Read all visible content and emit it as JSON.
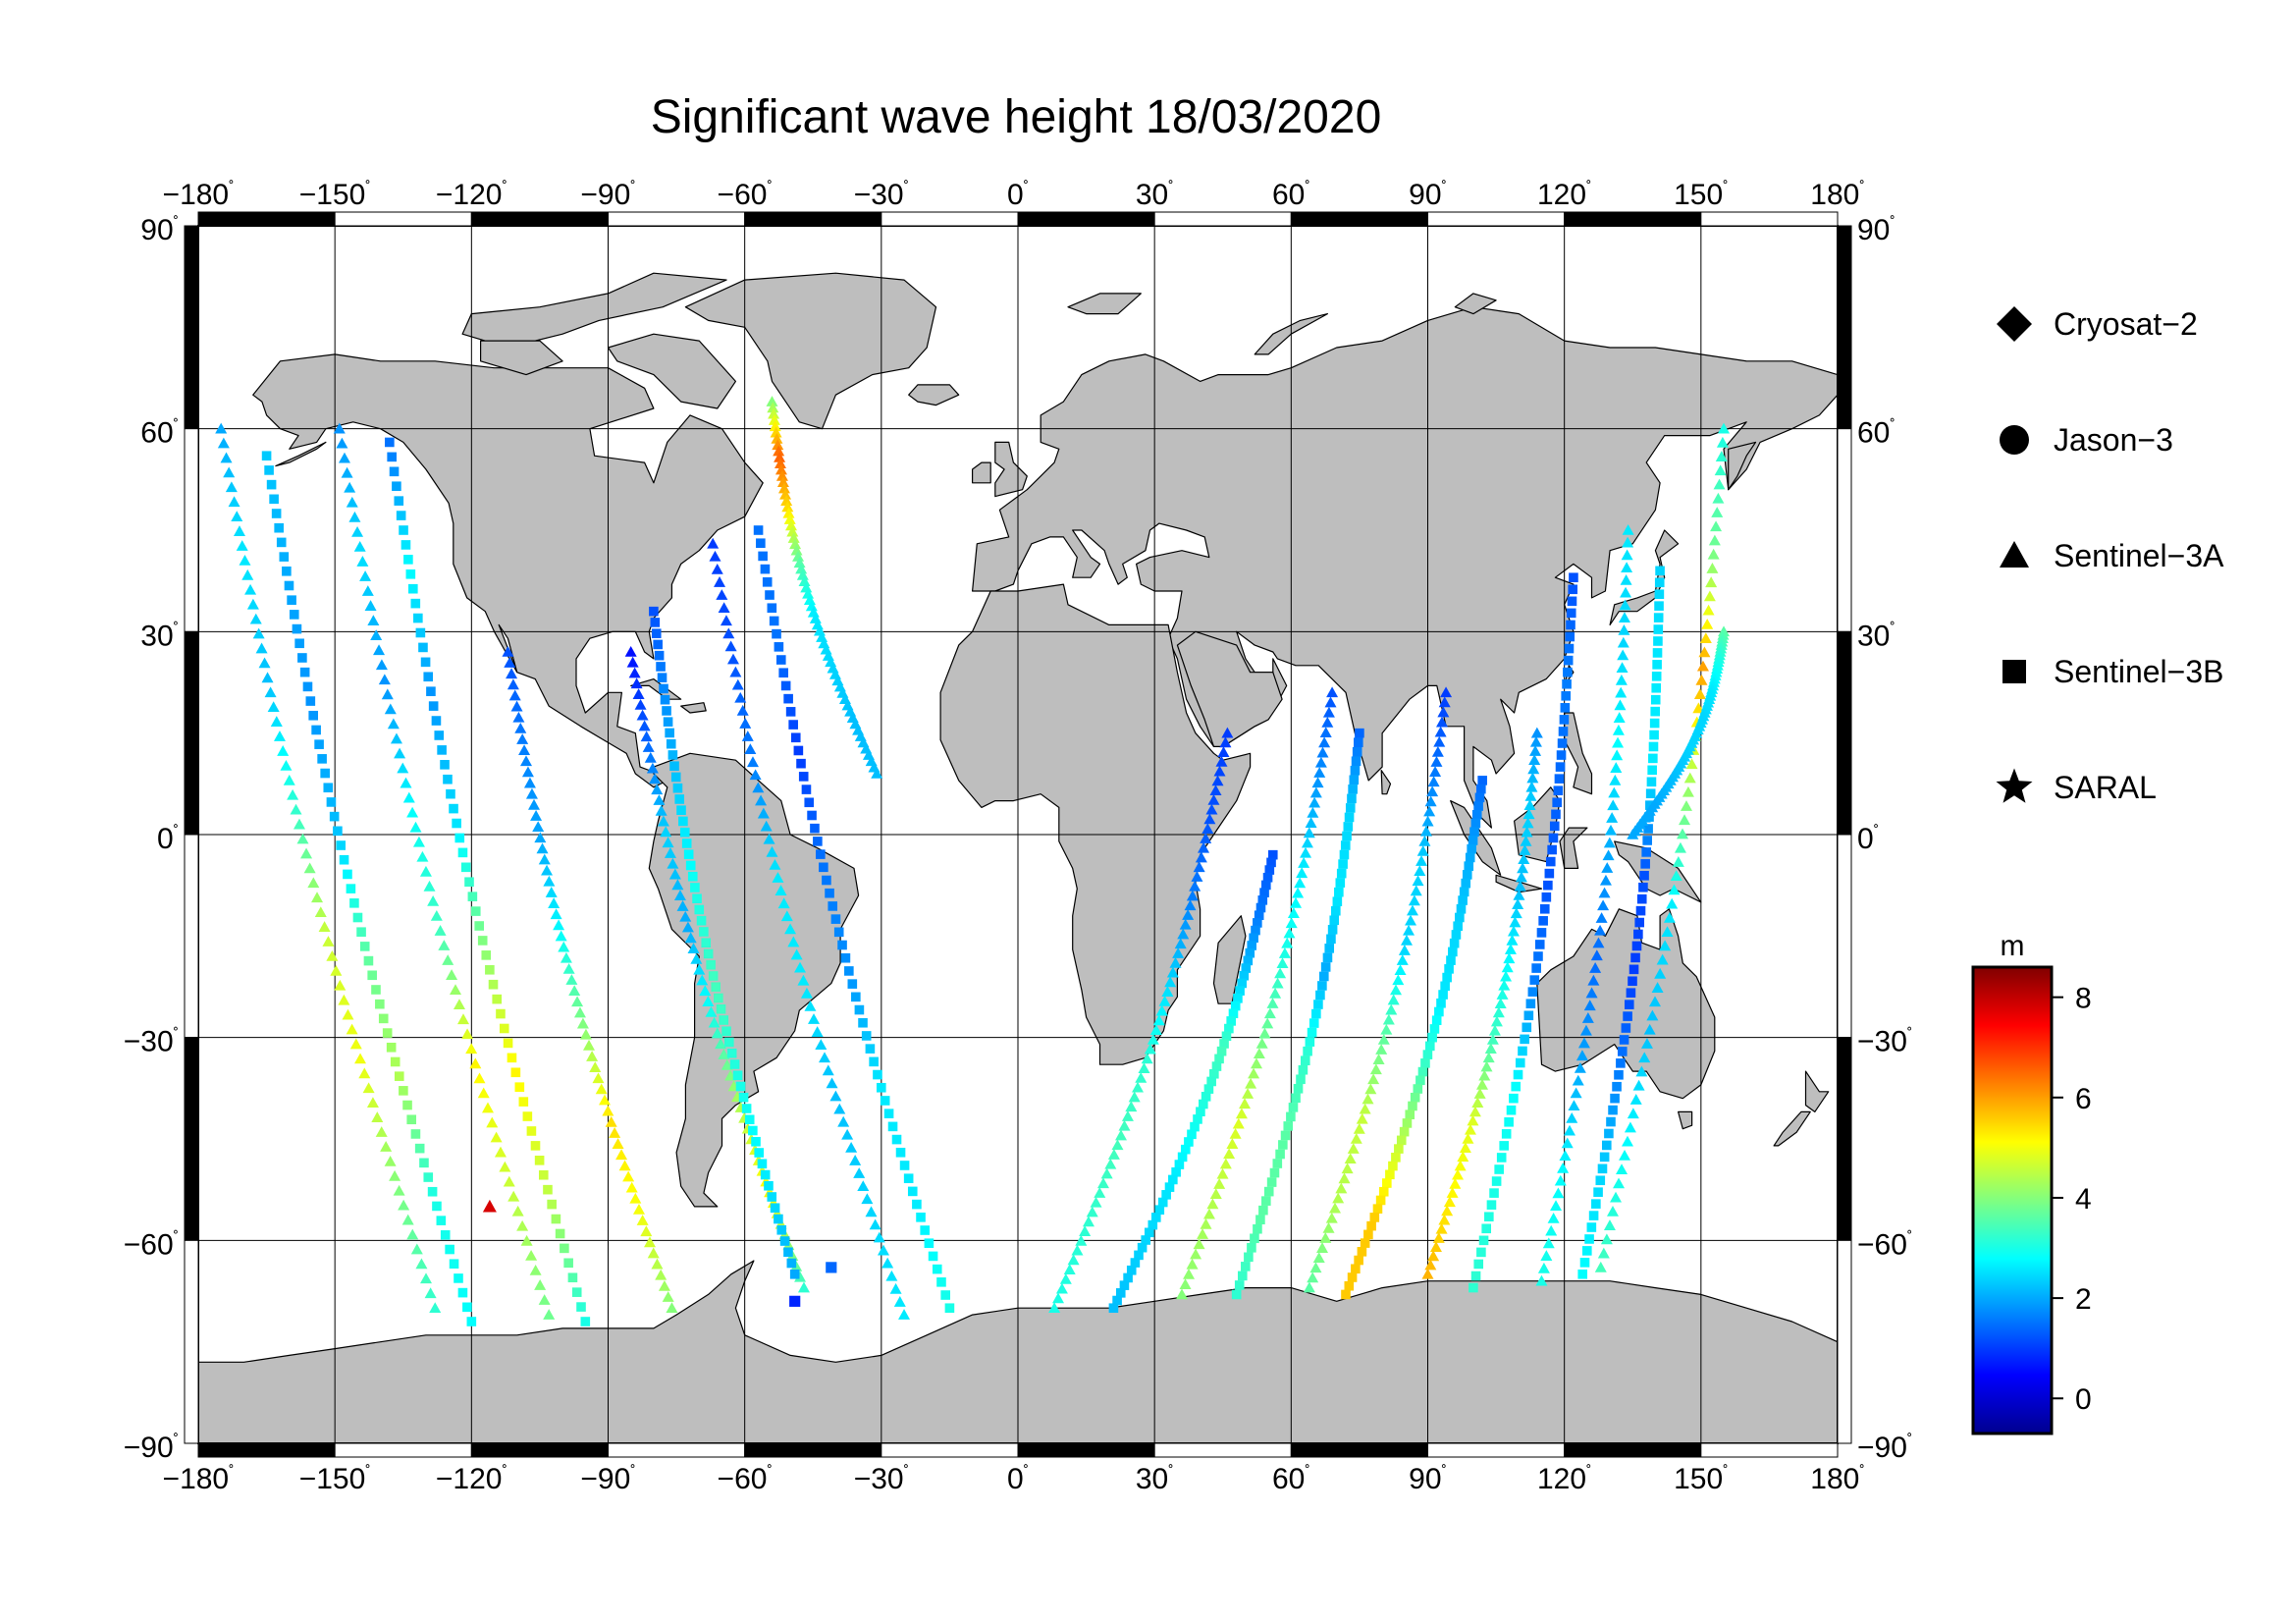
{
  "title": "Significant wave height 18/03/2020",
  "map": {
    "projection": "equirectangular",
    "lon_range": [
      -180,
      180
    ],
    "lat_range": [
      -90,
      90
    ],
    "lon_ticks": [
      -180,
      -150,
      -120,
      -90,
      -60,
      -30,
      0,
      30,
      60,
      90,
      120,
      150,
      180
    ],
    "lat_ticks": [
      90,
      60,
      30,
      0,
      -30,
      -60,
      -90
    ],
    "lon_tick_labels": [
      "−180",
      "−150",
      "−120",
      "−90",
      "−60",
      "−30",
      "0",
      "30",
      "60",
      "90",
      "120",
      "150",
      "180"
    ],
    "lat_tick_labels": [
      "90",
      "60",
      "30",
      "0",
      "−30",
      "−60",
      "−90"
    ],
    "degree_symbol": "˚",
    "land_color": "#bebebe",
    "ocean_color": "#ffffff",
    "grid": true
  },
  "legend": {
    "items": [
      {
        "label": "Cryosat−2",
        "marker": "diamond"
      },
      {
        "label": "Jason−3",
        "marker": "circle"
      },
      {
        "label": "Sentinel−3A",
        "marker": "triangle"
      },
      {
        "label": "Sentinel−3B",
        "marker": "square"
      },
      {
        "label": "SARAL",
        "marker": "star"
      }
    ]
  },
  "colorbar": {
    "unit": "m",
    "range": [
      -0.7,
      8.6
    ],
    "ticks": [
      0,
      2,
      4,
      6,
      8
    ],
    "tick_labels": [
      "0",
      "2",
      "4",
      "6",
      "8"
    ],
    "colormap": [
      "#00008f",
      "#0000ff",
      "#0080ff",
      "#00ffff",
      "#80ff80",
      "#ffff00",
      "#ff8000",
      "#ff0000",
      "#800000"
    ]
  },
  "chart_data": {
    "type": "scatter",
    "title": "Significant wave height 18/03/2020",
    "color_variable": "Significant wave height",
    "color_unit": "m",
    "tracks": [
      {
        "satellite": "Sentinel−3A",
        "start": [
          -175,
          60
        ],
        "end": [
          -128,
          -70
        ],
        "swh": [
          2.0,
          2.6,
          2.2,
          3.2,
          4.6,
          5.0,
          4.0,
          3.2
        ]
      },
      {
        "satellite": "Sentinel−3B",
        "start": [
          -165,
          56
        ],
        "end": [
          -120,
          -72
        ],
        "swh": [
          2.3,
          2.0,
          1.8,
          2.2,
          3.6,
          4.4,
          3.0,
          2.8
        ]
      },
      {
        "satellite": "Sentinel−3A",
        "start": [
          -149,
          60
        ],
        "end": [
          -103,
          -71
        ],
        "swh": [
          1.8,
          2.5,
          1.8,
          2.8,
          3.4,
          5.2,
          4.6,
          3.8
        ]
      },
      {
        "satellite": "Sentinel−3B",
        "start": [
          -138,
          58
        ],
        "end": [
          -95,
          -72
        ],
        "swh": [
          1.5,
          2.8,
          1.8,
          2.5,
          4.0,
          5.2,
          4.5,
          3.0
        ]
      },
      {
        "satellite": "Sentinel−3A",
        "start": [
          -112,
          27
        ],
        "end": [
          -76,
          -70
        ],
        "swh": [
          1.2,
          1.6,
          2.0,
          2.8,
          4.0,
          5.4,
          5.0,
          4.0
        ]
      },
      {
        "satellite": "Sentinel−3A",
        "start": [
          -85,
          27
        ],
        "end": [
          -47,
          -67
        ],
        "swh": [
          0.6,
          1.4,
          2.4,
          2.0,
          3.0,
          4.4,
          5.2,
          3.2
        ]
      },
      {
        "satellite": "Sentinel−3B",
        "start": [
          -80,
          33
        ],
        "end": [
          -49,
          -65
        ],
        "swh": [
          1.2,
          1.8,
          2.4,
          3.0,
          3.4,
          3.0,
          2.6,
          2.0
        ]
      },
      {
        "satellite": "Sentinel−3A",
        "start": [
          -67,
          43
        ],
        "end": [
          -25,
          -71
        ],
        "swh": [
          1.0,
          1.2,
          1.6,
          2.6,
          2.6,
          2.2,
          2.4,
          2.6
        ]
      },
      {
        "satellite": "Sentinel−3B",
        "start": [
          -57,
          45
        ],
        "end": [
          -15,
          -70
        ],
        "swh": [
          1.5,
          1.5,
          1.0,
          1.5,
          1.8,
          2.6,
          2.6,
          3.0
        ]
      },
      {
        "satellite": "Sentinel−3A",
        "start": [
          -54,
          64
        ],
        "end": [
          -31,
          9
        ],
        "swh": [
          4.0,
          6.6,
          5.4,
          3.6,
          2.6,
          2.4,
          2.2,
          2.2
        ]
      },
      {
        "satellite": "Sentinel−3A",
        "start": [
          46,
          15
        ],
        "end": [
          8,
          -70
        ],
        "swh": [
          1.0,
          1.2,
          1.6,
          2.4,
          3.2,
          3.4,
          3.2,
          3.0
        ]
      },
      {
        "satellite": "Sentinel−3B",
        "start": [
          56,
          -3
        ],
        "end": [
          21,
          -70
        ],
        "swh": [
          1.2,
          1.6,
          2.4,
          3.4,
          3.0,
          2.6,
          2.4,
          2.2
        ]
      },
      {
        "satellite": "Sentinel−3A",
        "start": [
          69,
          21
        ],
        "end": [
          36,
          -68
        ],
        "swh": [
          1.2,
          1.8,
          2.6,
          3.0,
          3.8,
          4.8,
          4.4,
          4.0
        ]
      },
      {
        "satellite": "Sentinel−3B",
        "start": [
          75,
          15
        ],
        "end": [
          48,
          -68
        ],
        "swh": [
          1.4,
          2.4,
          2.6,
          2.0,
          3.2,
          3.6,
          3.6,
          3.2
        ]
      },
      {
        "satellite": "Sentinel−3A",
        "start": [
          94,
          21
        ],
        "end": [
          64,
          -67
        ],
        "swh": [
          1.0,
          1.6,
          2.4,
          2.4,
          3.6,
          4.6,
          4.4,
          3.6
        ]
      },
      {
        "satellite": "Sentinel−3B",
        "start": [
          102,
          8
        ],
        "end": [
          72,
          -68
        ],
        "swh": [
          1.4,
          2.0,
          2.4,
          2.6,
          3.4,
          4.6,
          5.6,
          5.6
        ]
      },
      {
        "satellite": "Sentinel−3A",
        "start": [
          114,
          15
        ],
        "end": [
          90,
          -65
        ],
        "swh": [
          1.8,
          2.4,
          2.2,
          2.8,
          3.4,
          4.8,
          5.2,
          5.8
        ]
      },
      {
        "satellite": "Sentinel−3B",
        "start": [
          122,
          38
        ],
        "end": [
          100,
          -67
        ],
        "swh": [
          1.2,
          1.6,
          1.4,
          1.2,
          1.6,
          2.8,
          3.0,
          3.2
        ]
      },
      {
        "satellite": "Sentinel−3A",
        "start": [
          134,
          45
        ],
        "end": [
          115,
          -66
        ],
        "swh": [
          2.6,
          2.4,
          2.8,
          2.0,
          1.4,
          2.0,
          2.8,
          3.0
        ]
      },
      {
        "satellite": "Sentinel−3B",
        "start": [
          141,
          39
        ],
        "end": [
          124,
          -65
        ],
        "swh": [
          2.4,
          2.6,
          2.6,
          1.2,
          1.0,
          1.6,
          2.4,
          2.8
        ]
      },
      {
        "satellite": "Sentinel−3A",
        "start": [
          155,
          60
        ],
        "end": [
          128,
          -64
        ],
        "swh": [
          3.0,
          3.8,
          6.0,
          4.2,
          2.6,
          2.2,
          2.8,
          3.4
        ]
      },
      {
        "satellite": "Sentinel−3A",
        "start": [
          155,
          30
        ],
        "end": [
          135,
          0
        ],
        "swh": [
          3.6,
          3.0,
          2.6,
          2.4,
          2.4,
          2.2,
          2.0,
          2.0
        ]
      }
    ],
    "points": [
      {
        "satellite": "Sentinel−3B",
        "lon": -49,
        "lat": -69,
        "swh": 0.8
      },
      {
        "satellite": "Sentinel−3B",
        "lon": -41,
        "lat": -64,
        "swh": 1.4
      },
      {
        "satellite": "Sentinel−3A",
        "lon": -116,
        "lat": -55,
        "swh": 7.8
      }
    ]
  }
}
